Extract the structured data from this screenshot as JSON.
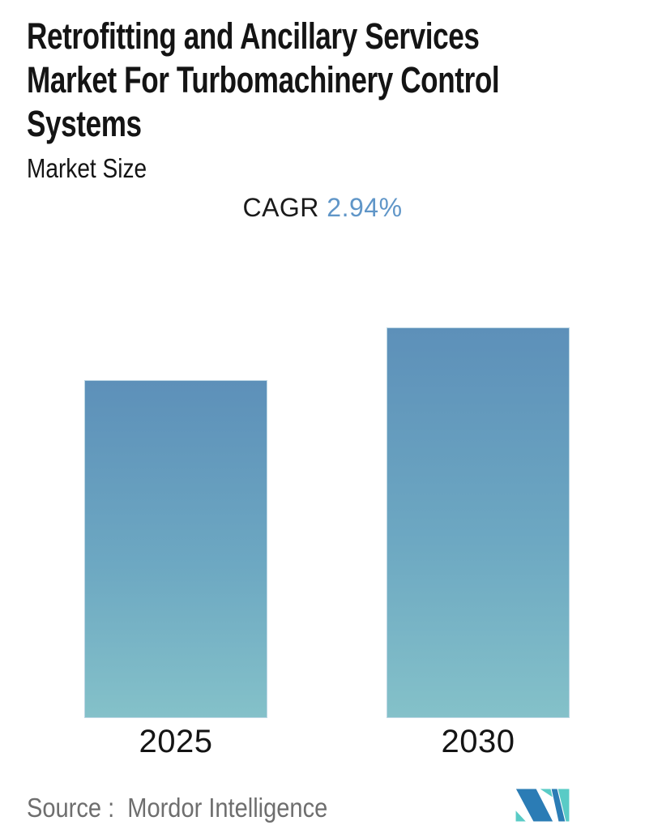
{
  "header": {
    "title_lines": [
      "Retrofitting and Ancillary Services",
      "Market For Turbomachinery Control",
      "Systems"
    ],
    "title_full": "Retrofitting and Ancillary Services Market For Turbomachinery Control Systems",
    "subtitle": "Market Size"
  },
  "cagr": {
    "label": "CAGR",
    "value": "2.94%"
  },
  "chart_data": {
    "type": "bar",
    "title": "Retrofitting and Ancillary Services Market For Turbomachinery Control Systems",
    "subtitle": "Market Size",
    "categories": [
      "2025",
      "2030"
    ],
    "values_relative": [
      0.865,
      1.0
    ],
    "values_labeled": false,
    "cagr_percent": 2.94,
    "xlabel": "",
    "ylabel": "",
    "legend": false,
    "grid": false,
    "axes_hidden": true,
    "bar_gradient": {
      "top": "#5d90b9",
      "bottom": "#84c1c9"
    },
    "bar_border_color": "#bdd7e4"
  },
  "footer": {
    "source_text": "Source :  Mordor Intelligence",
    "logo_name": "mordor-intelligence-logo",
    "logo_colors": {
      "teal": "#59cbc6",
      "blue": "#2b7cb5"
    }
  },
  "colors": {
    "text_dark": "#141414",
    "cagr_value_blue": "#6096c8",
    "source_gray": "#6e6e6e",
    "background": "#ffffff"
  }
}
